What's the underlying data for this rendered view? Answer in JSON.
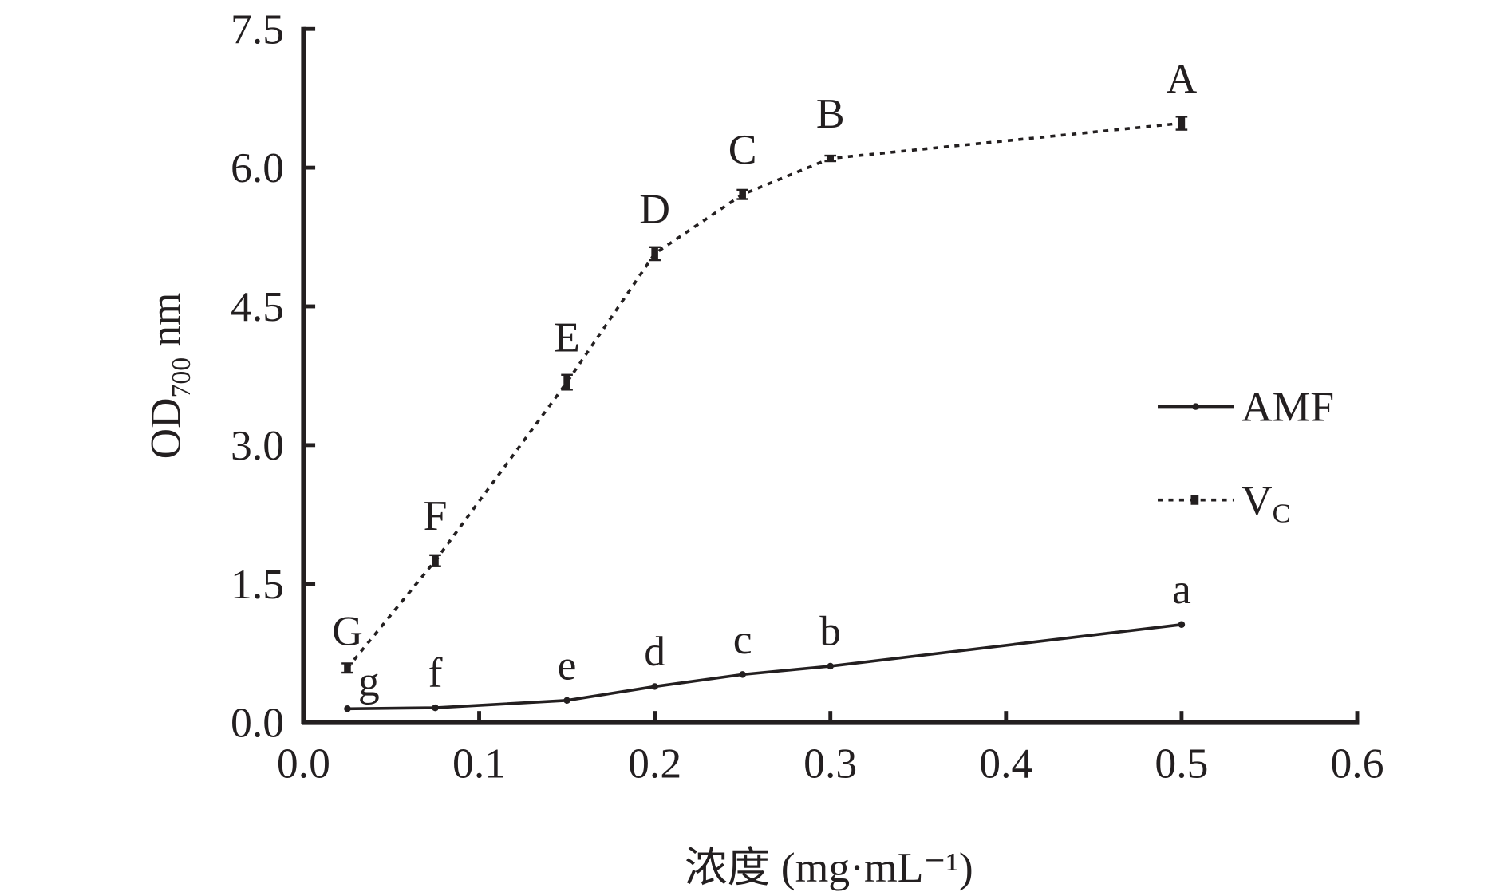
{
  "chart_data": {
    "type": "line",
    "title": "",
    "xlabel": "浓度 (mg·mL⁻¹)",
    "ylabel_main": "OD",
    "ylabel_sub": "700",
    "ylabel_unit": " nm",
    "xlim": [
      0,
      0.6
    ],
    "ylim": [
      0,
      7.5
    ],
    "xticks": [
      "0.0",
      "0.1",
      "0.2",
      "0.3",
      "0.4",
      "0.5",
      "0.6"
    ],
    "yticks": [
      "0.0",
      "1.5",
      "3.0",
      "4.5",
      "6.0",
      "7.5"
    ],
    "grid": false,
    "legend_position": "right",
    "axis_color": "#231f20",
    "x": [
      0.025,
      0.075,
      0.15,
      0.2,
      0.25,
      0.3,
      0.5
    ],
    "series": [
      {
        "name": "AMF",
        "legend_main": "AMF",
        "legend_sub": "",
        "style": "solid",
        "values": [
          0.15,
          0.16,
          0.24,
          0.39,
          0.52,
          0.61,
          1.06
        ],
        "letters": [
          "g",
          "f",
          "e",
          "d",
          "c",
          "b",
          "a"
        ]
      },
      {
        "name": "Vc",
        "legend_main": "V",
        "legend_sub": "C",
        "style": "dotted",
        "values": [
          0.59,
          1.75,
          3.68,
          5.07,
          5.71,
          6.1,
          6.48
        ],
        "errors": [
          0.05,
          0.06,
          0.08,
          0.07,
          0.05,
          0.03,
          0.07
        ],
        "letters": [
          "G",
          "F",
          "E",
          "D",
          "C",
          "B",
          "A"
        ]
      }
    ]
  }
}
